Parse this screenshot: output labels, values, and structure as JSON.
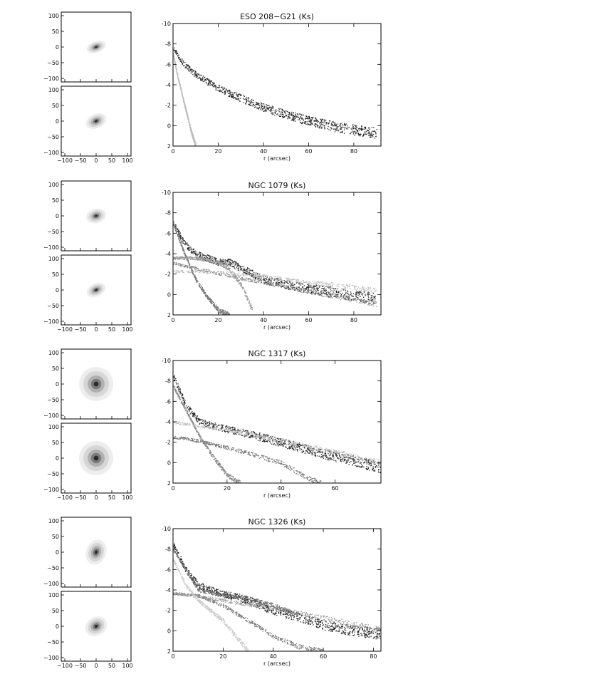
{
  "figure": {
    "thumb_ticks": [
      "100",
      "50",
      "0",
      "−50",
      "−100"
    ],
    "thumb_xticks": [
      "−100",
      "−50",
      "0",
      "50",
      "100"
    ],
    "profile_yticks": [
      "-10",
      "-8",
      "-6",
      "-4",
      "-2",
      "0",
      "2"
    ],
    "xlabel": "r (arcsec)"
  },
  "panels": [
    {
      "title": "ESO 208−G21 (Ks)",
      "xmax": 92,
      "xticks": [
        "0",
        "20",
        "40",
        "60",
        "80"
      ]
    },
    {
      "title": "NGC 1079 (Ks)",
      "xmax": 92,
      "xticks": [
        "0",
        "20",
        "40",
        "60",
        "80"
      ]
    },
    {
      "title": "NGC 1317 (Ks)",
      "xmax": 77,
      "xticks": [
        "0",
        "20",
        "40",
        "60"
      ]
    },
    {
      "title": "NGC 1326 (Ks)",
      "xmax": 83,
      "xticks": [
        "0",
        "20",
        "40",
        "60",
        "80"
      ]
    }
  ],
  "chart_data": [
    {
      "type": "scatter",
      "title": "ESO 208−G21 (Ks)",
      "xlabel": "r (arcsec)",
      "ylabel": "",
      "xlim": [
        0,
        92
      ],
      "ylim": [
        2,
        -10
      ],
      "series": [
        {
          "color": "#222222",
          "x": [
            0,
            5,
            10,
            20,
            30,
            40,
            50,
            60,
            70,
            80,
            90
          ],
          "y": [
            -7.5,
            -6.0,
            -5.0,
            -3.7,
            -2.7,
            -1.8,
            -1.1,
            -0.5,
            0.0,
            0.4,
            0.7
          ]
        },
        {
          "color": "#bbbbbb",
          "x": [
            0,
            2,
            4,
            6,
            8,
            10
          ],
          "y": [
            -7.0,
            -4.8,
            -3.0,
            -1.2,
            0.6,
            2.0
          ]
        }
      ]
    },
    {
      "type": "scatter",
      "title": "NGC 1079 (Ks)",
      "xlabel": "r (arcsec)",
      "ylabel": "",
      "xlim": [
        0,
        92
      ],
      "ylim": [
        2,
        -10
      ],
      "series": [
        {
          "color": "#222222",
          "x": [
            0,
            5,
            10,
            20,
            25,
            30,
            40,
            50,
            60,
            70,
            80,
            90
          ],
          "y": [
            -7.0,
            -5.0,
            -4.0,
            -3.2,
            -3.2,
            -2.6,
            -1.5,
            -1.0,
            -0.6,
            -0.3,
            0.1,
            0.4
          ]
        },
        {
          "color": "#777777",
          "x": [
            0,
            5,
            10,
            15,
            20,
            25
          ],
          "y": [
            -7.0,
            -4.0,
            -1.5,
            0.2,
            1.5,
            2.0
          ]
        },
        {
          "color": "#888888",
          "x": [
            0,
            10,
            20,
            30,
            40,
            50,
            60,
            70,
            80,
            90
          ],
          "y": [
            -3.1,
            -2.6,
            -2.1,
            -1.6,
            -1.2,
            -0.8,
            -0.3,
            0.1,
            0.5,
            0.9
          ]
        },
        {
          "color": "#999999",
          "x": [
            0,
            10,
            20,
            25,
            30,
            35
          ],
          "y": [
            -3.6,
            -3.6,
            -3.2,
            -2.5,
            -1.0,
            1.5
          ]
        },
        {
          "color": "#bbbbbb",
          "x": [
            0,
            10,
            20,
            30,
            40,
            50,
            60,
            70,
            80,
            90
          ],
          "y": [
            -2.3,
            -2.3,
            -2.2,
            -2.0,
            -1.8,
            -1.5,
            -1.2,
            -1.0,
            -0.7,
            -0.4
          ]
        }
      ]
    },
    {
      "type": "scatter",
      "title": "NGC 1317 (Ks)",
      "xlabel": "r (arcsec)",
      "ylabel": "",
      "xlim": [
        0,
        77
      ],
      "ylim": [
        2,
        -10
      ],
      "series": [
        {
          "color": "#222222",
          "x": [
            0,
            5,
            10,
            20,
            30,
            40,
            50,
            60,
            70,
            77
          ],
          "y": [
            -8.5,
            -5.5,
            -4.0,
            -3.3,
            -2.7,
            -2.0,
            -1.3,
            -0.6,
            0.0,
            0.5
          ]
        },
        {
          "color": "#777777",
          "x": [
            0,
            5,
            10,
            20,
            30,
            40,
            50,
            55
          ],
          "y": [
            -2.5,
            -2.4,
            -2.1,
            -1.5,
            -0.8,
            0.0,
            1.5,
            2.0
          ]
        },
        {
          "color": "#888888",
          "x": [
            0,
            5,
            10,
            15,
            20,
            25
          ],
          "y": [
            -7.5,
            -5.0,
            -2.5,
            -0.5,
            1.2,
            2.0
          ]
        },
        {
          "color": "#bbbbbb",
          "x": [
            0,
            10,
            20,
            30,
            40,
            50,
            60,
            70,
            77
          ],
          "y": [
            -4.0,
            -3.6,
            -3.2,
            -2.7,
            -2.2,
            -1.6,
            -1.1,
            -0.5,
            0.0
          ]
        }
      ]
    },
    {
      "type": "scatter",
      "title": "NGC 1326 (Ks)",
      "xlabel": "r (arcsec)",
      "ylabel": "",
      "xlim": [
        0,
        83
      ],
      "ylim": [
        2,
        -10
      ],
      "series": [
        {
          "color": "#222222",
          "x": [
            0,
            5,
            10,
            20,
            25,
            30,
            40,
            50,
            60,
            70,
            80,
            83
          ],
          "y": [
            -8.5,
            -6.0,
            -4.5,
            -3.6,
            -3.4,
            -3.0,
            -2.0,
            -1.4,
            -0.6,
            -0.1,
            0.2,
            0.3
          ]
        },
        {
          "color": "#666666",
          "x": [
            0,
            5,
            10,
            20,
            30,
            40,
            50
          ],
          "y": [
            -8.0,
            -6.0,
            -4.0,
            -3.5,
            -3.2,
            -2.5,
            -1.5
          ]
        },
        {
          "color": "#777777",
          "x": [
            0,
            10,
            20,
            30,
            40,
            50,
            60
          ],
          "y": [
            -3.7,
            -3.5,
            -2.5,
            -1.0,
            0.5,
            1.5,
            2.0
          ]
        },
        {
          "color": "#999999",
          "x": [
            0,
            10,
            20,
            30,
            40,
            50,
            60,
            70,
            80,
            83
          ],
          "y": [
            -3.7,
            -3.4,
            -3.0,
            -2.6,
            -2.2,
            -1.8,
            -1.3,
            -0.8,
            -0.3,
            -0.1
          ]
        },
        {
          "color": "#cccccc",
          "x": [
            0,
            5,
            10,
            15,
            20,
            25,
            30
          ],
          "y": [
            -7.0,
            -4.5,
            -3.0,
            -2.0,
            -1.0,
            0.5,
            2.0
          ]
        }
      ]
    }
  ]
}
